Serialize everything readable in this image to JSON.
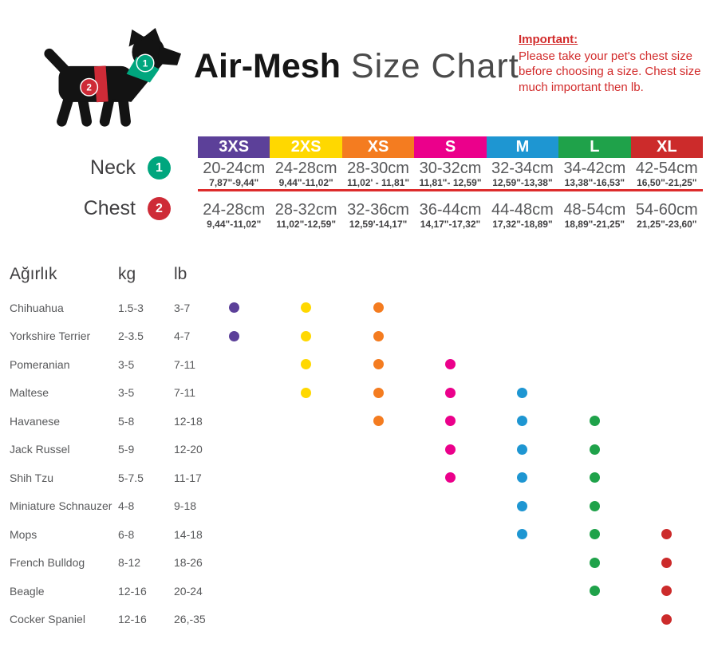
{
  "title": {
    "brand": "Air-Mesh",
    "rest": " Size Chart"
  },
  "important": {
    "heading": "Important:",
    "body": "Please take your pet's chest size before choosing a size. Chest size much important then lb."
  },
  "legend": {
    "neck_label": "Neck",
    "neck_marker": "1",
    "chest_label": "Chest",
    "chest_marker": "2"
  },
  "colors": {
    "accent-red": "#DD2C2C",
    "important-red": "#D22B2B",
    "neck-marker": "#00A67E",
    "chest-marker": "#CE2B37",
    "text-dark": "#414042",
    "text-gray": "#58595B"
  },
  "sizes": [
    {
      "label": "3XS",
      "color": "#5C4099",
      "neck_cm": "20-24cm",
      "neck_in": "7,87\"-9,44\"",
      "chest_cm": "24-28cm",
      "chest_in": "9,44\"-11,02\""
    },
    {
      "label": "2XS",
      "color": "#FFD800",
      "neck_cm": "24-28cm",
      "neck_in": "9,44\"-11,02\"",
      "chest_cm": "28-32cm",
      "chest_in": "11,02\"-12,59\""
    },
    {
      "label": "XS",
      "color": "#F47C20",
      "neck_cm": "28-30cm",
      "neck_in": "11,02' - 11,81\"",
      "chest_cm": "32-36cm",
      "chest_in": "12,59'-14,17\""
    },
    {
      "label": "S",
      "color": "#EB008B",
      "neck_cm": "30-32cm",
      "neck_in": "11,81\"- 12,59\"",
      "chest_cm": "36-44cm",
      "chest_in": "14,17\"-17,32\""
    },
    {
      "label": "M",
      "color": "#1E96D2",
      "neck_cm": "32-34cm",
      "neck_in": "12,59\"-13,38\"",
      "chest_cm": "44-48cm",
      "chest_in": "17,32\"-18,89\""
    },
    {
      "label": "L",
      "color": "#1FA24A",
      "neck_cm": "34-42cm",
      "neck_in": "13,38\"-16,53\"",
      "chest_cm": "48-54cm",
      "chest_in": "18,89\"-21,25\""
    },
    {
      "label": "XL",
      "color": "#CC2B2B",
      "neck_cm": "42-54cm",
      "neck_in": "16,50\"-21,25\"",
      "chest_cm": "54-60cm",
      "chest_in": "21,25\"-23,60\""
    }
  ],
  "weight_table": {
    "headers": {
      "breed": "Ağırlık",
      "kg": "kg",
      "lb": "lb"
    },
    "rows": [
      {
        "breed": "Chihuahua",
        "kg": "1.5-3",
        "lb": "3-7",
        "sizes": [
          "3XS",
          "2XS",
          "XS"
        ]
      },
      {
        "breed": "Yorkshire Terrier",
        "kg": "2-3.5",
        "lb": "4-7",
        "sizes": [
          "3XS",
          "2XS",
          "XS"
        ]
      },
      {
        "breed": "Pomeranian",
        "kg": "3-5",
        "lb": "7-11",
        "sizes": [
          "2XS",
          "XS",
          "S"
        ]
      },
      {
        "breed": "Maltese",
        "kg": "3-5",
        "lb": "7-11",
        "sizes": [
          "2XS",
          "XS",
          "S",
          "M"
        ]
      },
      {
        "breed": "Havanese",
        "kg": "5-8",
        "lb": "12-18",
        "sizes": [
          "XS",
          "S",
          "M",
          "L"
        ]
      },
      {
        "breed": "Jack Russel",
        "kg": "5-9",
        "lb": "12-20",
        "sizes": [
          "S",
          "M",
          "L"
        ]
      },
      {
        "breed": "Shih Tzu",
        "kg": "5-7.5",
        "lb": "11-17",
        "sizes": [
          "S",
          "M",
          "L"
        ]
      },
      {
        "breed": "Miniature Schnauzer",
        "kg": "4-8",
        "lb": "9-18",
        "sizes": [
          "M",
          "L"
        ]
      },
      {
        "breed": "Mops",
        "kg": "6-8",
        "lb": "14-18",
        "sizes": [
          "M",
          "L",
          "XL"
        ]
      },
      {
        "breed": "French Bulldog",
        "kg": "8-12",
        "lb": "18-26",
        "sizes": [
          "L",
          "XL"
        ]
      },
      {
        "breed": "Beagle",
        "kg": "12-16",
        "lb": "20-24",
        "sizes": [
          "L",
          "XL"
        ]
      },
      {
        "breed": "Cocker Spaniel",
        "kg": "12-16",
        "lb": "26,-35",
        "sizes": [
          "XL"
        ]
      }
    ]
  },
  "chart_data": {
    "type": "table",
    "title": "Air-Mesh Size Chart",
    "size_columns": [
      "3XS",
      "2XS",
      "XS",
      "S",
      "M",
      "L",
      "XL"
    ],
    "neck_cm": [
      "20-24",
      "24-28",
      "28-30",
      "30-32",
      "32-34",
      "34-42",
      "42-54"
    ],
    "neck_inches": [
      "7,87-9,44",
      "9,44-11,02",
      "11,02-11,81",
      "11,81-12,59",
      "12,59-13,38",
      "13,38-16,53",
      "16,50-21,25"
    ],
    "chest_cm": [
      "24-28",
      "28-32",
      "32-36",
      "36-44",
      "44-48",
      "48-54",
      "54-60"
    ],
    "chest_inches": [
      "9,44-11,02",
      "11,02-12,59",
      "12,59-14,17",
      "14,17-17,32",
      "17,32-18,89",
      "18,89-21,25",
      "21,25-23,60"
    ],
    "breed_size_matrix": [
      {
        "breed": "Chihuahua",
        "kg": "1.5-3",
        "lb": "3-7",
        "available_sizes": [
          "3XS",
          "2XS",
          "XS"
        ]
      },
      {
        "breed": "Yorkshire Terrier",
        "kg": "2-3.5",
        "lb": "4-7",
        "available_sizes": [
          "3XS",
          "2XS",
          "XS"
        ]
      },
      {
        "breed": "Pomeranian",
        "kg": "3-5",
        "lb": "7-11",
        "available_sizes": [
          "2XS",
          "XS",
          "S"
        ]
      },
      {
        "breed": "Maltese",
        "kg": "3-5",
        "lb": "7-11",
        "available_sizes": [
          "2XS",
          "XS",
          "S",
          "M"
        ]
      },
      {
        "breed": "Havanese",
        "kg": "5-8",
        "lb": "12-18",
        "available_sizes": [
          "XS",
          "S",
          "M",
          "L"
        ]
      },
      {
        "breed": "Jack Russel",
        "kg": "5-9",
        "lb": "12-20",
        "available_sizes": [
          "S",
          "M",
          "L"
        ]
      },
      {
        "breed": "Shih Tzu",
        "kg": "5-7.5",
        "lb": "11-17",
        "available_sizes": [
          "S",
          "M",
          "L"
        ]
      },
      {
        "breed": "Miniature Schnauzer",
        "kg": "4-8",
        "lb": "9-18",
        "available_sizes": [
          "M",
          "L"
        ]
      },
      {
        "breed": "Mops",
        "kg": "6-8",
        "lb": "14-18",
        "available_sizes": [
          "M",
          "L",
          "XL"
        ]
      },
      {
        "breed": "French Bulldog",
        "kg": "8-12",
        "lb": "18-26",
        "available_sizes": [
          "L",
          "XL"
        ]
      },
      {
        "breed": "Beagle",
        "kg": "12-16",
        "lb": "20-24",
        "available_sizes": [
          "L",
          "XL"
        ]
      },
      {
        "breed": "Cocker Spaniel",
        "kg": "12-16",
        "lb": "26,-35",
        "available_sizes": [
          "XL"
        ]
      }
    ]
  }
}
